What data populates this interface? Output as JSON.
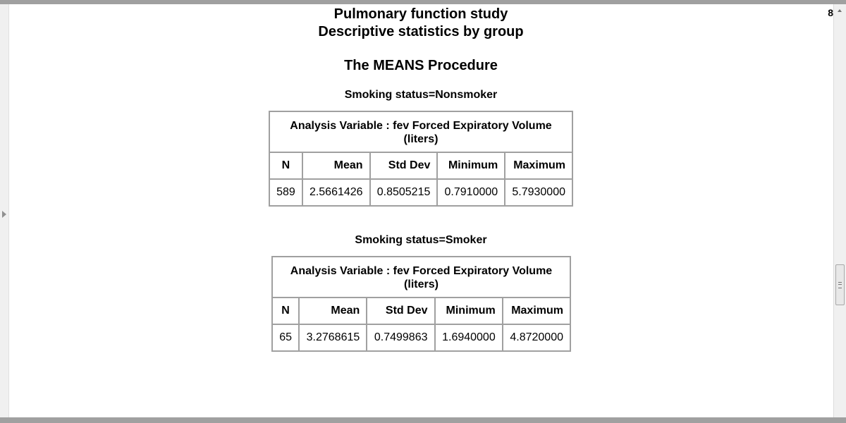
{
  "report": {
    "title_line1": "Pulmonary function study",
    "title_line2": "Descriptive statistics by group",
    "procedure": "The MEANS Procedure",
    "page_number": "8"
  },
  "columns": [
    "N",
    "Mean",
    "Std Dev",
    "Minimum",
    "Maximum"
  ],
  "groups": [
    {
      "heading": "Smoking status=Nonsmoker",
      "caption_line1": "Analysis Variable : fev Forced Expiratory Volume",
      "caption_line2": "(liters)",
      "values": [
        "589",
        "2.5661426",
        "0.8505215",
        "0.7910000",
        "5.7930000"
      ]
    },
    {
      "heading": "Smoking status=Smoker",
      "caption_line1": "Analysis Variable : fev Forced Expiratory Volume",
      "caption_line2": "(liters)",
      "values": [
        "65",
        "3.2768615",
        "0.7499863",
        "1.6940000",
        "4.8720000"
      ]
    }
  ],
  "colors": {
    "border": "#a0a0a0",
    "window_edge": "#a0a0a0",
    "background": "#ffffff"
  },
  "icons": {
    "gutter": "triangle-right-icon",
    "scroll_up": "triangle-up-icon",
    "scroll_grip": "grip-lines-icon"
  }
}
